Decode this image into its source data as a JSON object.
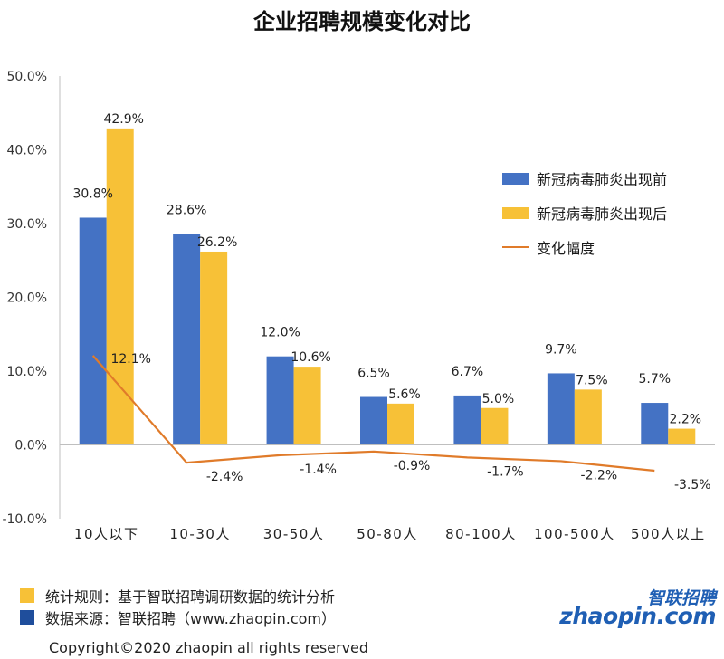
{
  "chart_data": {
    "type": "bar",
    "title": "企业招聘规模变化对比",
    "categories": [
      "10人以下",
      "10-30人",
      "30-50人",
      "50-80人",
      "80-100人",
      "100-500人",
      "500人以上"
    ],
    "series": [
      {
        "name": "新冠病毒肺炎出现前",
        "type": "bar",
        "color": "#4472c4",
        "values": [
          30.8,
          28.6,
          12.0,
          6.5,
          6.7,
          9.7,
          5.7
        ],
        "labels": [
          "30.8%",
          "28.6%",
          "12.0%",
          "6.5%",
          "6.7%",
          "9.7%",
          "5.7%"
        ]
      },
      {
        "name": "新冠病毒肺炎出现后",
        "type": "bar",
        "color": "#f7c137",
        "values": [
          42.9,
          26.2,
          10.6,
          5.6,
          5.0,
          7.5,
          2.2
        ],
        "labels": [
          "42.9%",
          "26.2%",
          "10.6%",
          "5.6%",
          "5.0%",
          "7.5%",
          "2.2%"
        ]
      },
      {
        "name": "变化幅度",
        "type": "line",
        "color": "#e07b2a",
        "values": [
          12.1,
          -2.4,
          -1.4,
          -0.9,
          -1.7,
          -2.2,
          -3.5
        ],
        "labels": [
          "12.1%",
          "-2.4%",
          "-1.4%",
          "-0.9%",
          "-1.7%",
          "-2.2%",
          "-3.5%"
        ]
      }
    ],
    "ylim": [
      -10,
      50
    ],
    "yticks": [
      "50.0%",
      "40.0%",
      "30.0%",
      "20.0%",
      "10.0%",
      "0.0%",
      "-10.0%"
    ],
    "ytick_values": [
      50,
      40,
      30,
      20,
      10,
      0,
      -10
    ],
    "xlabel": "",
    "ylabel": "",
    "grid": false,
    "legend_position": "right"
  },
  "footer": {
    "note1": "统计规则：基于智联招聘调研数据的统计分析",
    "note2": "数据来源：智联招聘（www.zhaopin.com）",
    "note1_color": "#f7c137",
    "note2_color": "#1f4e9c",
    "copyright": "Copyright©2020 zhaopin all rights reserved",
    "logo_cn": "智联招聘",
    "logo_en": "zhaopin.com"
  }
}
